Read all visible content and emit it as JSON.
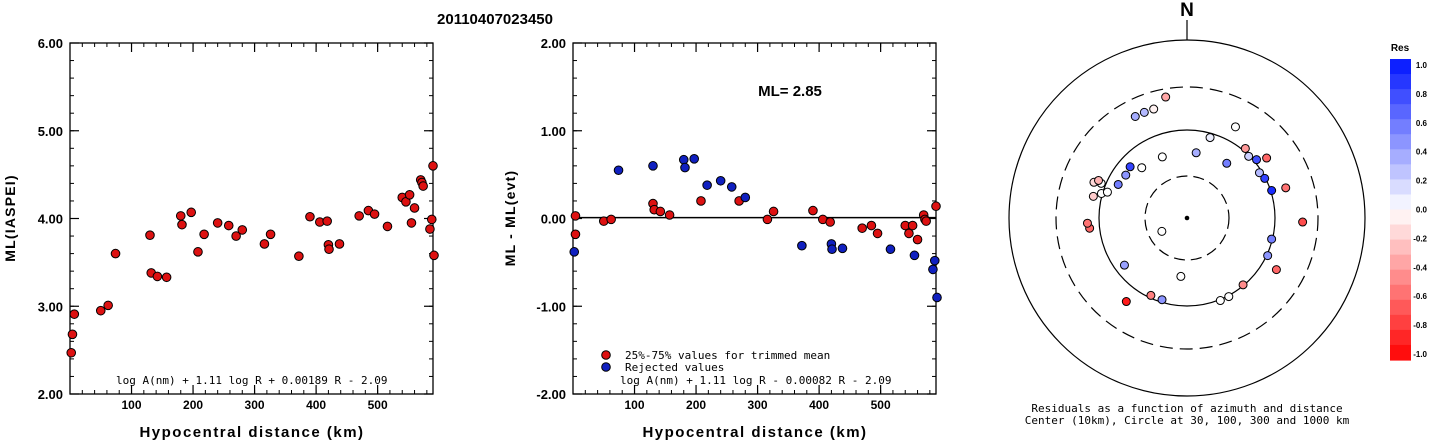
{
  "event_id": "20110407023450",
  "chart_data": [
    {
      "id": "ml_vs_distance",
      "type": "scatter",
      "xlabel": "Hypocentral distance (km)",
      "ylabel": "ML(IASPEI)",
      "xlim": [
        0,
        590
      ],
      "ylim": [
        2.0,
        6.0
      ],
      "xticks": [
        "100",
        "200",
        "300",
        "400",
        "500"
      ],
      "yticks": [
        "2.00",
        "3.00",
        "4.00",
        "5.00",
        "6.00"
      ],
      "formula": "log A(nm) + 1.11 log R + 0.00189 R - 2.09",
      "point_color": "#dd1111",
      "points": [
        [
          2,
          2.47
        ],
        [
          4,
          2.68
        ],
        [
          7,
          2.91
        ],
        [
          50,
          2.95
        ],
        [
          62,
          3.01
        ],
        [
          74,
          3.6
        ],
        [
          130,
          3.81
        ],
        [
          132,
          3.38
        ],
        [
          142,
          3.34
        ],
        [
          157,
          3.33
        ],
        [
          180,
          4.03
        ],
        [
          182,
          3.93
        ],
        [
          197,
          4.07
        ],
        [
          208,
          3.62
        ],
        [
          218,
          3.82
        ],
        [
          240,
          3.95
        ],
        [
          258,
          3.92
        ],
        [
          270,
          3.8
        ],
        [
          280,
          3.87
        ],
        [
          316,
          3.71
        ],
        [
          326,
          3.82
        ],
        [
          372,
          3.57
        ],
        [
          390,
          4.02
        ],
        [
          406,
          3.96
        ],
        [
          418,
          3.97
        ],
        [
          420,
          3.7
        ],
        [
          421,
          3.65
        ],
        [
          438,
          3.71
        ],
        [
          470,
          4.03
        ],
        [
          485,
          4.09
        ],
        [
          495,
          4.05
        ],
        [
          516,
          3.91
        ],
        [
          540,
          4.24
        ],
        [
          546,
          4.19
        ],
        [
          552,
          4.27
        ],
        [
          555,
          3.95
        ],
        [
          560,
          4.12
        ],
        [
          570,
          4.44
        ],
        [
          572,
          4.41
        ],
        [
          574,
          4.37
        ],
        [
          585,
          3.88
        ],
        [
          588,
          3.99
        ],
        [
          590,
          4.6
        ],
        [
          593,
          3.58
        ]
      ]
    },
    {
      "id": "residual_vs_distance",
      "type": "scatter",
      "xlabel": "Hypocentral distance (km)",
      "ylabel": "ML - ML(evt)",
      "xlim": [
        0,
        590
      ],
      "ylim": [
        -2.0,
        2.0
      ],
      "xticks": [
        "100",
        "200",
        "300",
        "400",
        "500"
      ],
      "yticks": [
        "-2.00",
        "-1.00",
        "0.00",
        "1.00",
        "2.00"
      ],
      "annotation": "ML= 2.85",
      "formula": "log A(nm) + 1.11 log R - 0.00082 R - 2.09",
      "legend": [
        {
          "label": "25%-75% values for trimmed mean",
          "color": "#dd1111"
        },
        {
          "label": "Rejected values",
          "color": "#1020c0"
        }
      ],
      "series": [
        {
          "name": "25%-75% values for trimmed mean",
          "color": "#dd1111",
          "points": [
            [
              4,
              0.03
            ],
            [
              4,
              -0.18
            ],
            [
              50,
              -0.03
            ],
            [
              62,
              -0.01
            ],
            [
              130,
              0.17
            ],
            [
              132,
              0.1
            ],
            [
              142,
              0.08
            ],
            [
              157,
              0.04
            ],
            [
              208,
              0.2
            ],
            [
              270,
              0.2
            ],
            [
              316,
              -0.01
            ],
            [
              326,
              0.08
            ],
            [
              390,
              0.09
            ],
            [
              406,
              -0.01
            ],
            [
              418,
              -0.04
            ],
            [
              470,
              -0.11
            ],
            [
              485,
              -0.08
            ],
            [
              495,
              -0.17
            ],
            [
              540,
              -0.08
            ],
            [
              546,
              -0.17
            ],
            [
              552,
              -0.08
            ],
            [
              560,
              -0.24
            ],
            [
              570,
              0.04
            ],
            [
              572,
              -0.01
            ],
            [
              574,
              -0.03
            ],
            [
              590,
              0.14
            ]
          ]
        },
        {
          "name": "Rejected values",
          "color": "#1020c0",
          "points": [
            [
              2,
              -0.38
            ],
            [
              74,
              0.55
            ],
            [
              130,
              0.6
            ],
            [
              180,
              0.67
            ],
            [
              182,
              0.58
            ],
            [
              197,
              0.68
            ],
            [
              218,
              0.38
            ],
            [
              240,
              0.43
            ],
            [
              258,
              0.36
            ],
            [
              280,
              0.24
            ],
            [
              372,
              -0.31
            ],
            [
              420,
              -0.29
            ],
            [
              421,
              -0.35
            ],
            [
              438,
              -0.34
            ],
            [
              516,
              -0.35
            ],
            [
              555,
              -0.42
            ],
            [
              585,
              -0.58
            ],
            [
              588,
              -0.48
            ],
            [
              593,
              -0.9
            ]
          ]
        }
      ]
    },
    {
      "id": "residual_azimuth_map",
      "type": "scatter",
      "north_label": "N",
      "caption_line1": "Residuals as a function of azimuth and distance",
      "caption_line2": "Center (10km), Circle at 30, 100, 300 and 1000 km",
      "colorbar_title": "Res",
      "colorbar_ticks": [
        "1.0",
        "0.8",
        "0.6",
        "0.4",
        "0.2",
        "0.0",
        "-0.2",
        "-0.4",
        "-0.6",
        "-0.8",
        "-1.0"
      ],
      "stations": [
        {
          "az": 186,
          "dist": 330,
          "res": 0.0
        },
        {
          "az": 242,
          "dist": 160,
          "res": 0.0
        },
        {
          "az": 338,
          "dist": 370,
          "res": 0.0
        },
        {
          "az": 16,
          "dist": 470,
          "res": 0.07
        },
        {
          "az": 36,
          "dist": 380,
          "res": 0.55
        },
        {
          "az": 152,
          "dist": 500,
          "res": 0.0
        },
        {
          "az": 333,
          "dist": 640,
          "res": 0.35
        },
        {
          "az": 338,
          "dist": 640,
          "res": 0.3
        },
        {
          "az": 343,
          "dist": 640,
          "res": -0.05
        },
        {
          "az": 350,
          "dist": 690,
          "res": -0.35
        },
        {
          "az": 8,
          "dist": 370,
          "res": 0.35
        },
        {
          "az": 28,
          "dist": 580,
          "res": 0.0
        },
        {
          "az": 40,
          "dist": 510,
          "res": -0.4
        },
        {
          "az": 45,
          "dist": 490,
          "res": 0.2
        },
        {
          "az": 50,
          "dist": 510,
          "res": 0.75
        },
        {
          "az": 53,
          "dist": 560,
          "res": -0.6
        },
        {
          "az": 58,
          "dist": 480,
          "res": 0.3
        },
        {
          "az": 63,
          "dist": 490,
          "res": 0.8
        },
        {
          "az": 72,
          "dist": 500,
          "res": 0.9
        },
        {
          "az": 73,
          "dist": 580,
          "res": -0.55
        },
        {
          "az": 92,
          "dist": 650,
          "res": -0.7
        },
        {
          "az": 104,
          "dist": 490,
          "res": 0.55
        },
        {
          "az": 115,
          "dist": 500,
          "res": 0.45
        },
        {
          "az": 120,
          "dist": 580,
          "res": -0.6
        },
        {
          "az": 140,
          "dist": 490,
          "res": -0.45
        },
        {
          "az": 158,
          "dist": 500,
          "res": 0.0
        },
        {
          "az": 197,
          "dist": 480,
          "res": 0.45
        },
        {
          "az": 205,
          "dist": 480,
          "res": -0.5
        },
        {
          "az": 216,
          "dist": 580,
          "res": -0.9
        },
        {
          "az": 233,
          "dist": 440,
          "res": 0.4
        },
        {
          "az": 264,
          "dist": 550,
          "res": -0.6
        },
        {
          "az": 267,
          "dist": 560,
          "res": -0.55
        },
        {
          "az": 283,
          "dist": 540,
          "res": -0.2
        },
        {
          "az": 286,
          "dist": 500,
          "res": 0.0
        },
        {
          "az": 288,
          "dist": 470,
          "res": 0.0
        },
        {
          "az": 291,
          "dist": 560,
          "res": -0.15
        },
        {
          "az": 292,
          "dist": 520,
          "res": 0.0
        },
        {
          "az": 293,
          "dist": 540,
          "res": -0.3
        },
        {
          "az": 296,
          "dist": 430,
          "res": 0.55
        },
        {
          "az": 305,
          "dist": 420,
          "res": 0.45
        },
        {
          "az": 312,
          "dist": 430,
          "res": 0.8
        },
        {
          "az": 318,
          "dist": 380,
          "res": 0.0
        }
      ]
    }
  ]
}
